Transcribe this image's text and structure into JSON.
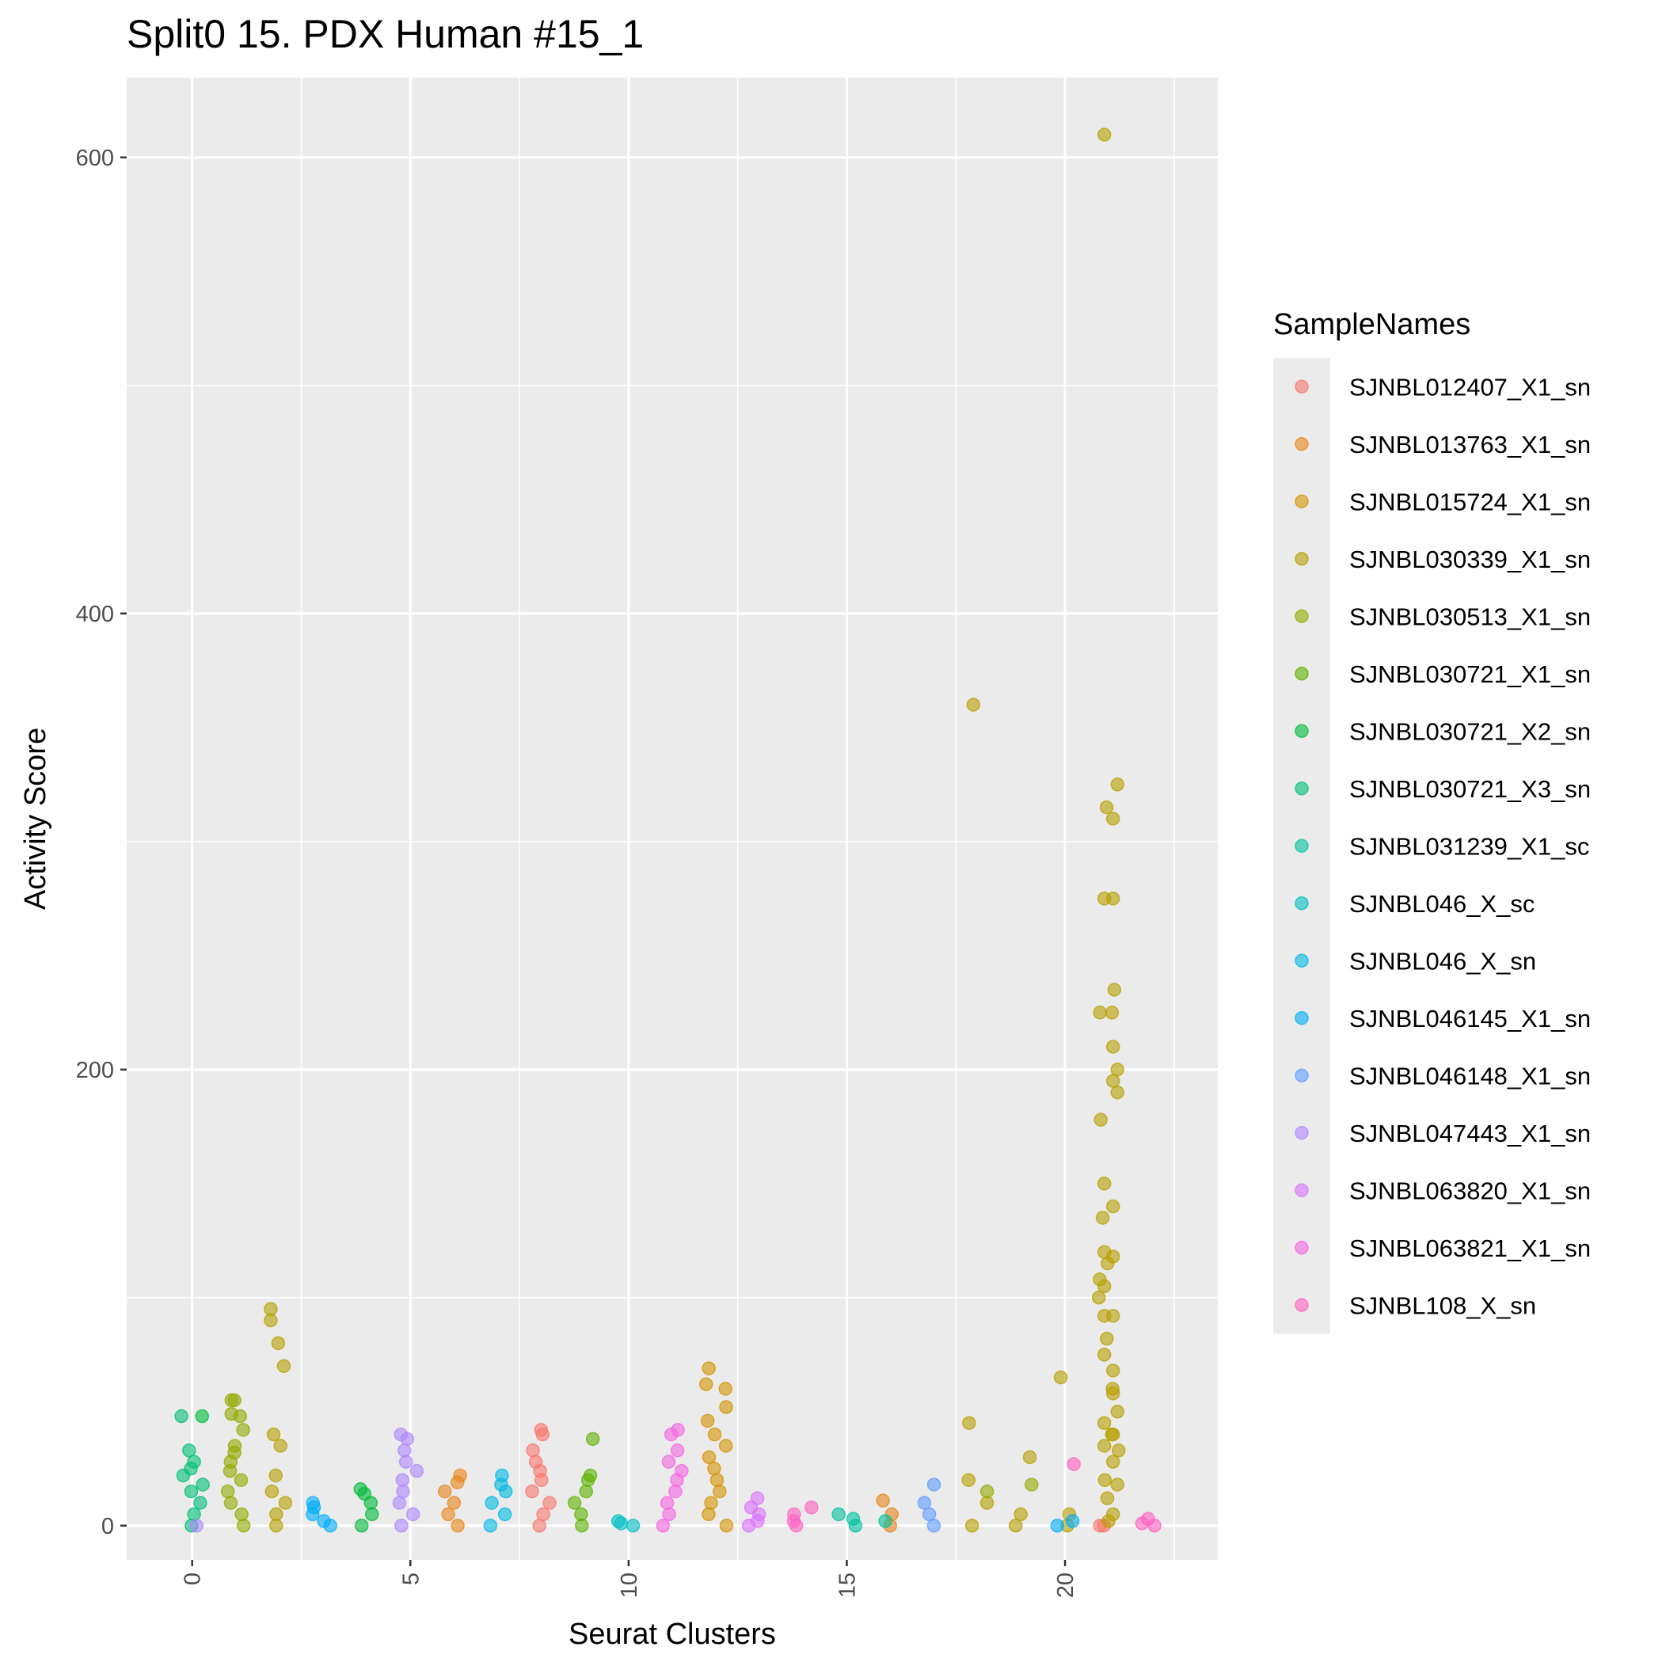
{
  "chart_data": {
    "type": "scatter",
    "title": "Split0 15. PDX Human #15_1",
    "xlabel": "Seurat Clusters",
    "ylabel": "Activity Score",
    "xlim": [
      -1.5,
      23.5
    ],
    "ylim": [
      -15,
      635
    ],
    "x_ticks": [
      0,
      5,
      10,
      15,
      20
    ],
    "y_ticks": [
      0,
      200,
      400,
      600
    ],
    "legend_title": "SampleNames",
    "legend_position": "right",
    "grid": true,
    "jitter": true,
    "series": [
      {
        "name": "SJNBL012407_X1_sn",
        "color": "#F8766D",
        "points": [
          [
            8,
            42
          ],
          [
            8,
            40
          ],
          [
            8,
            33
          ],
          [
            8,
            28
          ],
          [
            8,
            24
          ],
          [
            8,
            20
          ],
          [
            8,
            15
          ],
          [
            8,
            10
          ],
          [
            8,
            5
          ],
          [
            8,
            0
          ],
          [
            20.8,
            0
          ],
          [
            21,
            0
          ]
        ]
      },
      {
        "name": "SJNBL013763_X1_sn",
        "color": "#E7861B",
        "points": [
          [
            6,
            22
          ],
          [
            6,
            19
          ],
          [
            6,
            15
          ],
          [
            6,
            10
          ],
          [
            6,
            5
          ],
          [
            6,
            0
          ],
          [
            16,
            11
          ],
          [
            16,
            5
          ],
          [
            16,
            0
          ]
        ]
      },
      {
        "name": "SJNBL015724_X1_sn",
        "color": "#D39200",
        "points": [
          [
            12,
            69
          ],
          [
            12,
            62
          ],
          [
            12,
            60
          ],
          [
            12,
            52
          ],
          [
            12,
            46
          ],
          [
            12,
            40
          ],
          [
            12,
            35
          ],
          [
            12,
            30
          ],
          [
            12,
            25
          ],
          [
            12,
            20
          ],
          [
            12,
            15
          ],
          [
            12,
            10
          ],
          [
            12,
            5
          ],
          [
            12,
            0
          ]
        ]
      },
      {
        "name": "SJNBL030339_X1_sn",
        "color": "#B79F00",
        "points": [
          [
            1.8,
            95
          ],
          [
            1.8,
            90
          ],
          [
            2,
            80
          ],
          [
            2.1,
            70
          ],
          [
            2,
            40
          ],
          [
            2,
            35
          ],
          [
            2,
            22
          ],
          [
            2,
            15
          ],
          [
            2,
            10
          ],
          [
            2,
            5
          ],
          [
            2,
            0
          ],
          [
            17.9,
            360
          ],
          [
            17.8,
            45
          ],
          [
            18,
            20
          ],
          [
            18,
            10
          ],
          [
            18,
            0
          ],
          [
            19,
            30
          ],
          [
            19,
            5
          ],
          [
            19,
            0
          ],
          [
            19.9,
            65
          ],
          [
            20.1,
            5
          ],
          [
            20,
            0
          ],
          [
            21.2,
            325
          ],
          [
            21,
            315
          ],
          [
            21.1,
            310
          ],
          [
            20.9,
            275
          ],
          [
            21.1,
            275
          ],
          [
            21,
            235
          ],
          [
            20.8,
            225
          ],
          [
            21,
            225
          ],
          [
            21.1,
            210
          ],
          [
            21.2,
            200
          ],
          [
            21.1,
            195
          ],
          [
            21.2,
            190
          ],
          [
            21,
            178
          ],
          [
            20.9,
            150
          ],
          [
            21.1,
            140
          ],
          [
            21,
            135
          ],
          [
            20.9,
            120
          ],
          [
            21.1,
            118
          ],
          [
            21,
            115
          ],
          [
            21,
            108
          ],
          [
            20.9,
            105
          ],
          [
            21,
            100
          ],
          [
            20.9,
            92
          ],
          [
            21.1,
            92
          ],
          [
            21,
            82
          ],
          [
            20.9,
            75
          ],
          [
            21.1,
            68
          ],
          [
            21,
            60
          ],
          [
            21.1,
            58
          ],
          [
            21.2,
            50
          ],
          [
            20.9,
            45
          ],
          [
            21,
            40
          ],
          [
            21.1,
            40
          ],
          [
            20.9,
            35
          ],
          [
            21,
            33
          ],
          [
            21.1,
            28
          ],
          [
            21,
            20
          ],
          [
            21.2,
            18
          ],
          [
            21,
            12
          ],
          [
            21.1,
            5
          ],
          [
            21,
            2
          ],
          [
            20.9,
            610
          ]
        ]
      },
      {
        "name": "SJNBL030513_X1_sn",
        "color": "#93AA00",
        "points": [
          [
            0.9,
            55
          ],
          [
            1,
            55
          ],
          [
            0.9,
            49
          ],
          [
            1.1,
            48
          ],
          [
            1,
            42
          ],
          [
            1,
            35
          ],
          [
            1,
            32
          ],
          [
            1,
            28
          ],
          [
            1,
            24
          ],
          [
            1,
            20
          ],
          [
            1,
            15
          ],
          [
            1,
            10
          ],
          [
            1,
            5
          ],
          [
            1,
            0
          ],
          [
            19,
            18
          ],
          [
            18,
            15
          ]
        ]
      },
      {
        "name": "SJNBL030721_X1_sn",
        "color": "#5EB300",
        "points": [
          [
            9,
            38
          ],
          [
            9,
            22
          ],
          [
            9,
            20
          ],
          [
            9,
            15
          ],
          [
            9,
            10
          ],
          [
            9,
            5
          ],
          [
            9,
            0
          ]
        ]
      },
      {
        "name": "SJNBL030721_X2_sn",
        "color": "#00BA38",
        "points": [
          [
            4,
            16
          ],
          [
            4,
            14
          ],
          [
            4,
            10
          ],
          [
            4,
            5
          ],
          [
            4,
            0
          ],
          [
            0,
            48
          ]
        ]
      },
      {
        "name": "SJNBL030721_X3_sn",
        "color": "#00BF74",
        "points": [
          [
            0,
            48
          ],
          [
            0,
            33
          ],
          [
            0,
            28
          ],
          [
            0,
            25
          ],
          [
            0,
            22
          ],
          [
            0,
            18
          ],
          [
            0,
            15
          ],
          [
            0,
            10
          ],
          [
            0,
            5
          ],
          [
            0,
            0
          ]
        ]
      },
      {
        "name": "SJNBL031239_X1_sc",
        "color": "#00C19F",
        "points": [
          [
            15,
            5
          ],
          [
            15,
            3
          ],
          [
            15,
            0
          ],
          [
            16,
            2
          ]
        ]
      },
      {
        "name": "SJNBL046_X_sc",
        "color": "#00BFC4",
        "points": [
          [
            10,
            2
          ],
          [
            10,
            1
          ],
          [
            10,
            0
          ]
        ]
      },
      {
        "name": "SJNBL046_X_sn",
        "color": "#00B9E3",
        "points": [
          [
            7,
            22
          ],
          [
            7,
            18
          ],
          [
            7,
            15
          ],
          [
            7,
            10
          ],
          [
            7,
            5
          ],
          [
            7,
            0
          ]
        ]
      },
      {
        "name": "SJNBL046145_X1_sn",
        "color": "#00ADFA",
        "points": [
          [
            3,
            10
          ],
          [
            3,
            8
          ],
          [
            3,
            5
          ],
          [
            3,
            2
          ],
          [
            3,
            0
          ],
          [
            20,
            2
          ],
          [
            20,
            0
          ]
        ]
      },
      {
        "name": "SJNBL046148_X1_sn",
        "color": "#619CFF",
        "points": [
          [
            17,
            18
          ],
          [
            17,
            10
          ],
          [
            17,
            5
          ],
          [
            17,
            0
          ]
        ]
      },
      {
        "name": "SJNBL047443_X1_sn",
        "color": "#AE87FF",
        "points": [
          [
            0.1,
            0
          ],
          [
            5,
            40
          ],
          [
            5,
            38
          ],
          [
            5,
            33
          ],
          [
            5,
            28
          ],
          [
            5,
            24
          ],
          [
            5,
            20
          ],
          [
            5,
            15
          ],
          [
            5,
            10
          ],
          [
            5,
            5
          ],
          [
            5,
            0
          ]
        ]
      },
      {
        "name": "SJNBL063820_X1_sn",
        "color": "#DB72FB",
        "points": [
          [
            13,
            12
          ],
          [
            13,
            8
          ],
          [
            13,
            5
          ],
          [
            13,
            2
          ],
          [
            13,
            0
          ]
        ]
      },
      {
        "name": "SJNBL063821_X1_sn",
        "color": "#F564E3",
        "points": [
          [
            11,
            42
          ],
          [
            11,
            40
          ],
          [
            11,
            33
          ],
          [
            11,
            28
          ],
          [
            11,
            24
          ],
          [
            11,
            20
          ],
          [
            11,
            15
          ],
          [
            11,
            10
          ],
          [
            11,
            5
          ],
          [
            11,
            0
          ]
        ]
      },
      {
        "name": "SJNBL108_X_sn",
        "color": "#FF61C3",
        "points": [
          [
            14,
            8
          ],
          [
            14,
            5
          ],
          [
            14,
            2
          ],
          [
            14,
            0
          ],
          [
            20.2,
            27
          ],
          [
            22,
            3
          ],
          [
            22,
            1
          ],
          [
            22,
            0
          ]
        ]
      }
    ]
  }
}
